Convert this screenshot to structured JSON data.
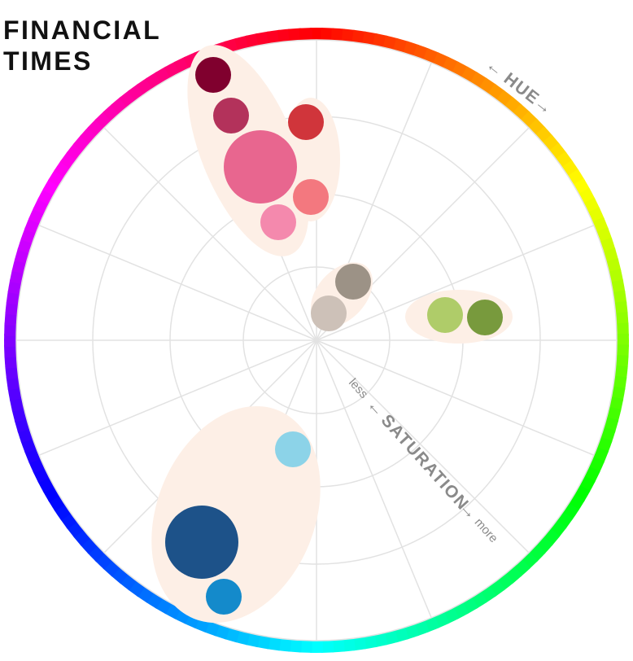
{
  "brand": {
    "line1": "FINANCIAL",
    "line2": "TIMES"
  },
  "labels": {
    "hue": "HUE",
    "saturation": "SATURATION",
    "less": "less",
    "more": "more",
    "arrow_left": "←",
    "arrow_right": "→"
  },
  "colors": {
    "background": "#ffffff",
    "grid": "#e2e2e2",
    "blob": "#fdefe6",
    "label": "#8a8a8a"
  },
  "palette": [
    {
      "group": "reds",
      "hex": "#80002e",
      "size": "medium"
    },
    {
      "group": "reds",
      "hex": "#b3325b",
      "size": "medium"
    },
    {
      "group": "reds",
      "hex": "#d0353b",
      "size": "medium"
    },
    {
      "group": "reds",
      "hex": "#e8668f",
      "size": "large"
    },
    {
      "group": "reds",
      "hex": "#f3787f",
      "size": "medium"
    },
    {
      "group": "reds",
      "hex": "#f489ad",
      "size": "medium"
    },
    {
      "group": "neutrals",
      "hex": "#9c9286",
      "size": "medium"
    },
    {
      "group": "neutrals",
      "hex": "#cdc1b8",
      "size": "medium"
    },
    {
      "group": "greens",
      "hex": "#afcc69",
      "size": "medium"
    },
    {
      "group": "greens",
      "hex": "#789a3d",
      "size": "medium"
    },
    {
      "group": "blues",
      "hex": "#8cd3e8",
      "size": "medium"
    },
    {
      "group": "blues",
      "hex": "#1d5289",
      "size": "large"
    },
    {
      "group": "blues",
      "hex": "#148acb",
      "size": "medium"
    }
  ]
}
